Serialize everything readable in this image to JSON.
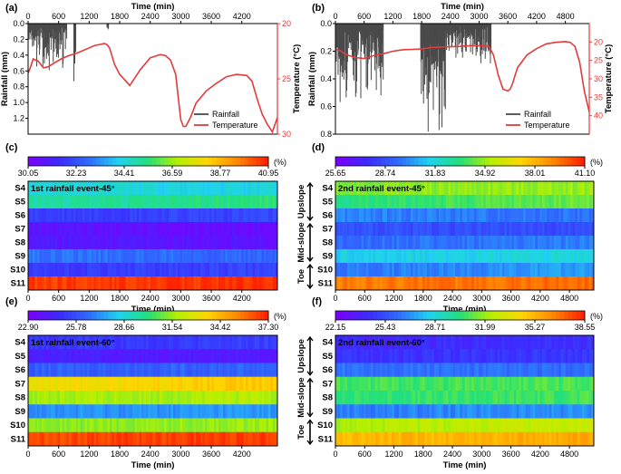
{
  "chart_data": [
    {
      "id": "a",
      "type": "line",
      "panel_label": "(a)",
      "xlabel": "Time (min)",
      "xlim": [
        0,
        4900
      ],
      "x_ticks": [
        "0",
        "600",
        "1200",
        "1800",
        "2400",
        "3000",
        "3600",
        "4200"
      ],
      "x_tick_values": [
        0,
        600,
        1200,
        1800,
        2400,
        3000,
        3600,
        4200
      ],
      "ylabel_left": "Rainfall (mm)",
      "ylim_left": [
        0,
        1.4
      ],
      "y_left_reversed": true,
      "y_left_ticks": [
        "0.0",
        "0.2",
        "0.4",
        "0.6",
        "0.8",
        "1.0",
        "1.2"
      ],
      "y_left_tick_values": [
        0,
        0.2,
        0.4,
        0.6,
        0.8,
        1.0,
        1.2
      ],
      "ylabel_right": "Temperature (°C)",
      "ylim_right": [
        20,
        30
      ],
      "y_right_reversed": true,
      "y_right_ticks": [
        "20",
        "25",
        "30"
      ],
      "y_right_tick_values": [
        20,
        25,
        30
      ],
      "legend": [
        "Rainfall",
        "Temperature"
      ],
      "legend_position": "bottom-right",
      "temperature": {
        "x": [
          0,
          50,
          100,
          200,
          300,
          400,
          500,
          650,
          800,
          950,
          1100,
          1300,
          1500,
          1550,
          1600,
          1700,
          1800,
          2000,
          2200,
          2400,
          2600,
          2700,
          2800,
          2900,
          3000,
          3050,
          3100,
          3200,
          3300,
          3500,
          3700,
          3900,
          4100,
          4300,
          4400,
          4500,
          4600,
          4700,
          4800,
          4900
        ],
        "y": [
          24.5,
          23.9,
          23.2,
          23.4,
          24.0,
          23.9,
          23.6,
          23.2,
          22.9,
          22.7,
          22.4,
          22.0,
          21.8,
          21.9,
          22.2,
          23.7,
          24.6,
          25.6,
          24.2,
          23.1,
          22.8,
          22.9,
          23.3,
          24.6,
          28.7,
          29.3,
          29.3,
          28.4,
          27.2,
          26.1,
          25.4,
          24.8,
          24.6,
          24.7,
          25.2,
          26.8,
          28.2,
          29.1,
          29.8,
          28.5
        ]
      },
      "rainfall_events": [
        {
          "start": 20,
          "end": 760,
          "base": 0.05,
          "peak": 0.6
        },
        {
          "start": 900,
          "end": 940,
          "base": 0.2,
          "peak": 1.35
        },
        {
          "start": 1550,
          "end": 1580,
          "base": 0.05,
          "peak": 0.08
        }
      ]
    },
    {
      "id": "b",
      "type": "line",
      "panel_label": "(b)",
      "xlabel": "Time (min)",
      "xlim": [
        0,
        5300
      ],
      "x_ticks": [
        "0",
        "600",
        "1200",
        "1800",
        "2400",
        "3000",
        "3600",
        "4200",
        "4800"
      ],
      "x_tick_values": [
        0,
        600,
        1200,
        1800,
        2400,
        3000,
        3600,
        4200,
        4800
      ],
      "ylabel_left": "Rainfall (mm)",
      "ylim_left": [
        0,
        0.8
      ],
      "y_left_reversed": true,
      "y_left_ticks": [
        "0.0",
        "0.2",
        "0.4",
        "0.6",
        "0.8"
      ],
      "y_left_tick_values": [
        0,
        0.2,
        0.4,
        0.6,
        0.8
      ],
      "ylabel_right": "Temperature (°C)",
      "ylim_right": [
        15,
        45
      ],
      "y_right_reversed": true,
      "y_right_ticks": [
        "20",
        "25",
        "30",
        "35",
        "40"
      ],
      "y_right_tick_values": [
        20,
        25,
        30,
        35,
        40
      ],
      "legend": [
        "Rainfall",
        "Temperature"
      ],
      "legend_position": "bottom-right",
      "temperature": {
        "x": [
          0,
          100,
          200,
          400,
          600,
          800,
          1000,
          1200,
          1400,
          1600,
          1800,
          2000,
          2200,
          2400,
          2600,
          2800,
          3000,
          3200,
          3300,
          3400,
          3500,
          3600,
          3650,
          3700,
          3800,
          4000,
          4200,
          4400,
          4600,
          4800,
          4900,
          5000,
          5100,
          5200,
          5300
        ],
        "y": [
          22.0,
          22.3,
          23.3,
          24.2,
          24.5,
          23.7,
          23.2,
          22.5,
          22.1,
          22.0,
          21.9,
          21.5,
          21.4,
          21.3,
          21.2,
          21.0,
          21.0,
          21.1,
          23.5,
          29.0,
          32.8,
          33.3,
          32.8,
          31.2,
          27.0,
          23.5,
          21.8,
          20.5,
          20.1,
          19.9,
          20.1,
          21.2,
          25.5,
          33.5,
          39.0
        ]
      },
      "rainfall_events": [
        {
          "start": 20,
          "end": 1000,
          "base": 0.04,
          "peak": 0.6
        },
        {
          "start": 1780,
          "end": 2300,
          "base": 0.1,
          "peak": 0.8
        },
        {
          "start": 2300,
          "end": 3250,
          "base": 0.02,
          "peak": 0.3
        }
      ]
    },
    {
      "id": "c",
      "type": "heatmap",
      "panel_label": "(c)",
      "annotation": "1st rainfall event-45°",
      "xlabel": "Time (min)",
      "xlim": [
        0,
        4900
      ],
      "x_ticks": [
        "0",
        "600",
        "1200",
        "1800",
        "2400",
        "3000",
        "3600",
        "4200"
      ],
      "x_tick_values": [
        0,
        600,
        1200,
        1800,
        2400,
        3000,
        3600,
        4200
      ],
      "colorbar_ticks": [
        "30.05",
        "32.23",
        "34.41",
        "36.59",
        "38.77",
        "40.95"
      ],
      "colorbar_unit": "(%)",
      "vmin": 30.05,
      "vmax": 40.95,
      "rows": [
        "S4",
        "S5",
        "S6",
        "S7",
        "S8",
        "S9",
        "S10",
        "S11"
      ],
      "zones": [],
      "values": [
        [
          34.5,
          34.2
        ],
        [
          35.0,
          35.5
        ],
        [
          31.8,
          32.0
        ],
        [
          30.7,
          30.4
        ],
        [
          30.9,
          30.6
        ],
        [
          32.9,
          32.6
        ],
        [
          31.7,
          31.9
        ],
        [
          40.6,
          40.8
        ]
      ]
    },
    {
      "id": "d",
      "type": "heatmap",
      "panel_label": "(d)",
      "annotation": "2nd rainfall event-45°",
      "xlabel": "Time (min)",
      "xlim": [
        0,
        5300
      ],
      "x_ticks": [
        "0",
        "600",
        "1200",
        "1800",
        "2400",
        "3000",
        "3600",
        "4200",
        "4800"
      ],
      "x_tick_values": [
        0,
        600,
        1200,
        1800,
        2400,
        3000,
        3600,
        4200,
        4800
      ],
      "colorbar_ticks": [
        "25.65",
        "28.74",
        "31.83",
        "34.92",
        "38.01",
        "41.10"
      ],
      "colorbar_unit": "(%)",
      "vmin": 25.65,
      "vmax": 41.1,
      "rows": [
        "S4",
        "S5",
        "S6",
        "S7",
        "S8",
        "S9",
        "S10",
        "S11"
      ],
      "zones": [
        {
          "label": "Upslope",
          "from": 0,
          "to": 3
        },
        {
          "label": "Mid-slope",
          "from": 3,
          "to": 6
        },
        {
          "label": "Toe",
          "from": 6,
          "to": 8
        }
      ],
      "values": [
        [
          34.6,
          35.0
        ],
        [
          33.2,
          34.4
        ],
        [
          30.0,
          29.6
        ],
        [
          28.7,
          28.5
        ],
        [
          29.4,
          29.9
        ],
        [
          31.4,
          31.8
        ],
        [
          29.7,
          30.5
        ],
        [
          39.4,
          39.8
        ]
      ]
    },
    {
      "id": "e",
      "type": "heatmap",
      "panel_label": "(e)",
      "annotation": "1st rainfall event-60°",
      "xlabel": "Time (min)",
      "xlim": [
        0,
        4900
      ],
      "x_ticks": [
        "0",
        "600",
        "1200",
        "1800",
        "2400",
        "3000",
        "3600",
        "4200"
      ],
      "x_tick_values": [
        0,
        600,
        1200,
        1800,
        2400,
        3000,
        3600,
        4200
      ],
      "colorbar_ticks": [
        "22.90",
        "25.78",
        "28.66",
        "31.54",
        "34.42",
        "37.30"
      ],
      "colorbar_unit": "(%)",
      "vmin": 22.9,
      "vmax": 37.3,
      "rows": [
        "S4",
        "S5",
        "S6",
        "S7",
        "S8",
        "S9",
        "S10",
        "S11"
      ],
      "zones": [],
      "values": [
        [
          25.0,
          25.2
        ],
        [
          24.2,
          24.0
        ],
        [
          26.1,
          26.3
        ],
        [
          33.2,
          34.0
        ],
        [
          31.7,
          31.9
        ],
        [
          27.1,
          27.3
        ],
        [
          31.3,
          31.6
        ],
        [
          36.7,
          36.9
        ]
      ]
    },
    {
      "id": "f",
      "type": "heatmap",
      "panel_label": "(f)",
      "annotation": "2nd rainfall event-60°",
      "xlabel": "Time (min)",
      "xlim": [
        0,
        5300
      ],
      "x_ticks": [
        "0",
        "600",
        "1200",
        "1800",
        "2400",
        "3000",
        "3600",
        "4200",
        "4800"
      ],
      "x_tick_values": [
        0,
        600,
        1200,
        1800,
        2400,
        3000,
        3600,
        4200,
        4800
      ],
      "colorbar_ticks": [
        "22.15",
        "25.43",
        "28.71",
        "31.99",
        "35.27",
        "38.55"
      ],
      "colorbar_unit": "(%)",
      "vmin": 22.15,
      "vmax": 38.55,
      "rows": [
        "S4",
        "S5",
        "S6",
        "S7",
        "S8",
        "S9",
        "S10",
        "S11"
      ],
      "zones": [
        {
          "label": "Upslope",
          "from": 0,
          "to": 3
        },
        {
          "label": "Mid-slope",
          "from": 3,
          "to": 6
        },
        {
          "label": "Toe",
          "from": 6,
          "to": 8
        }
      ],
      "values": [
        [
          24.0,
          24.3
        ],
        [
          24.3,
          24.6
        ],
        [
          26.4,
          26.1
        ],
        [
          30.7,
          31.0
        ],
        [
          30.4,
          30.8
        ],
        [
          26.6,
          27.0
        ],
        [
          32.3,
          32.9
        ],
        [
          35.2,
          35.6
        ]
      ]
    }
  ],
  "colors": {
    "temperature": "#e23b3b",
    "rainfall": "#4a4a4a",
    "colormap": [
      "#7a00ff",
      "#3b2cff",
      "#2f6bff",
      "#1fd3f0",
      "#22e07a",
      "#b5f000",
      "#ffd500",
      "#ff8a00",
      "#ff2200"
    ]
  }
}
